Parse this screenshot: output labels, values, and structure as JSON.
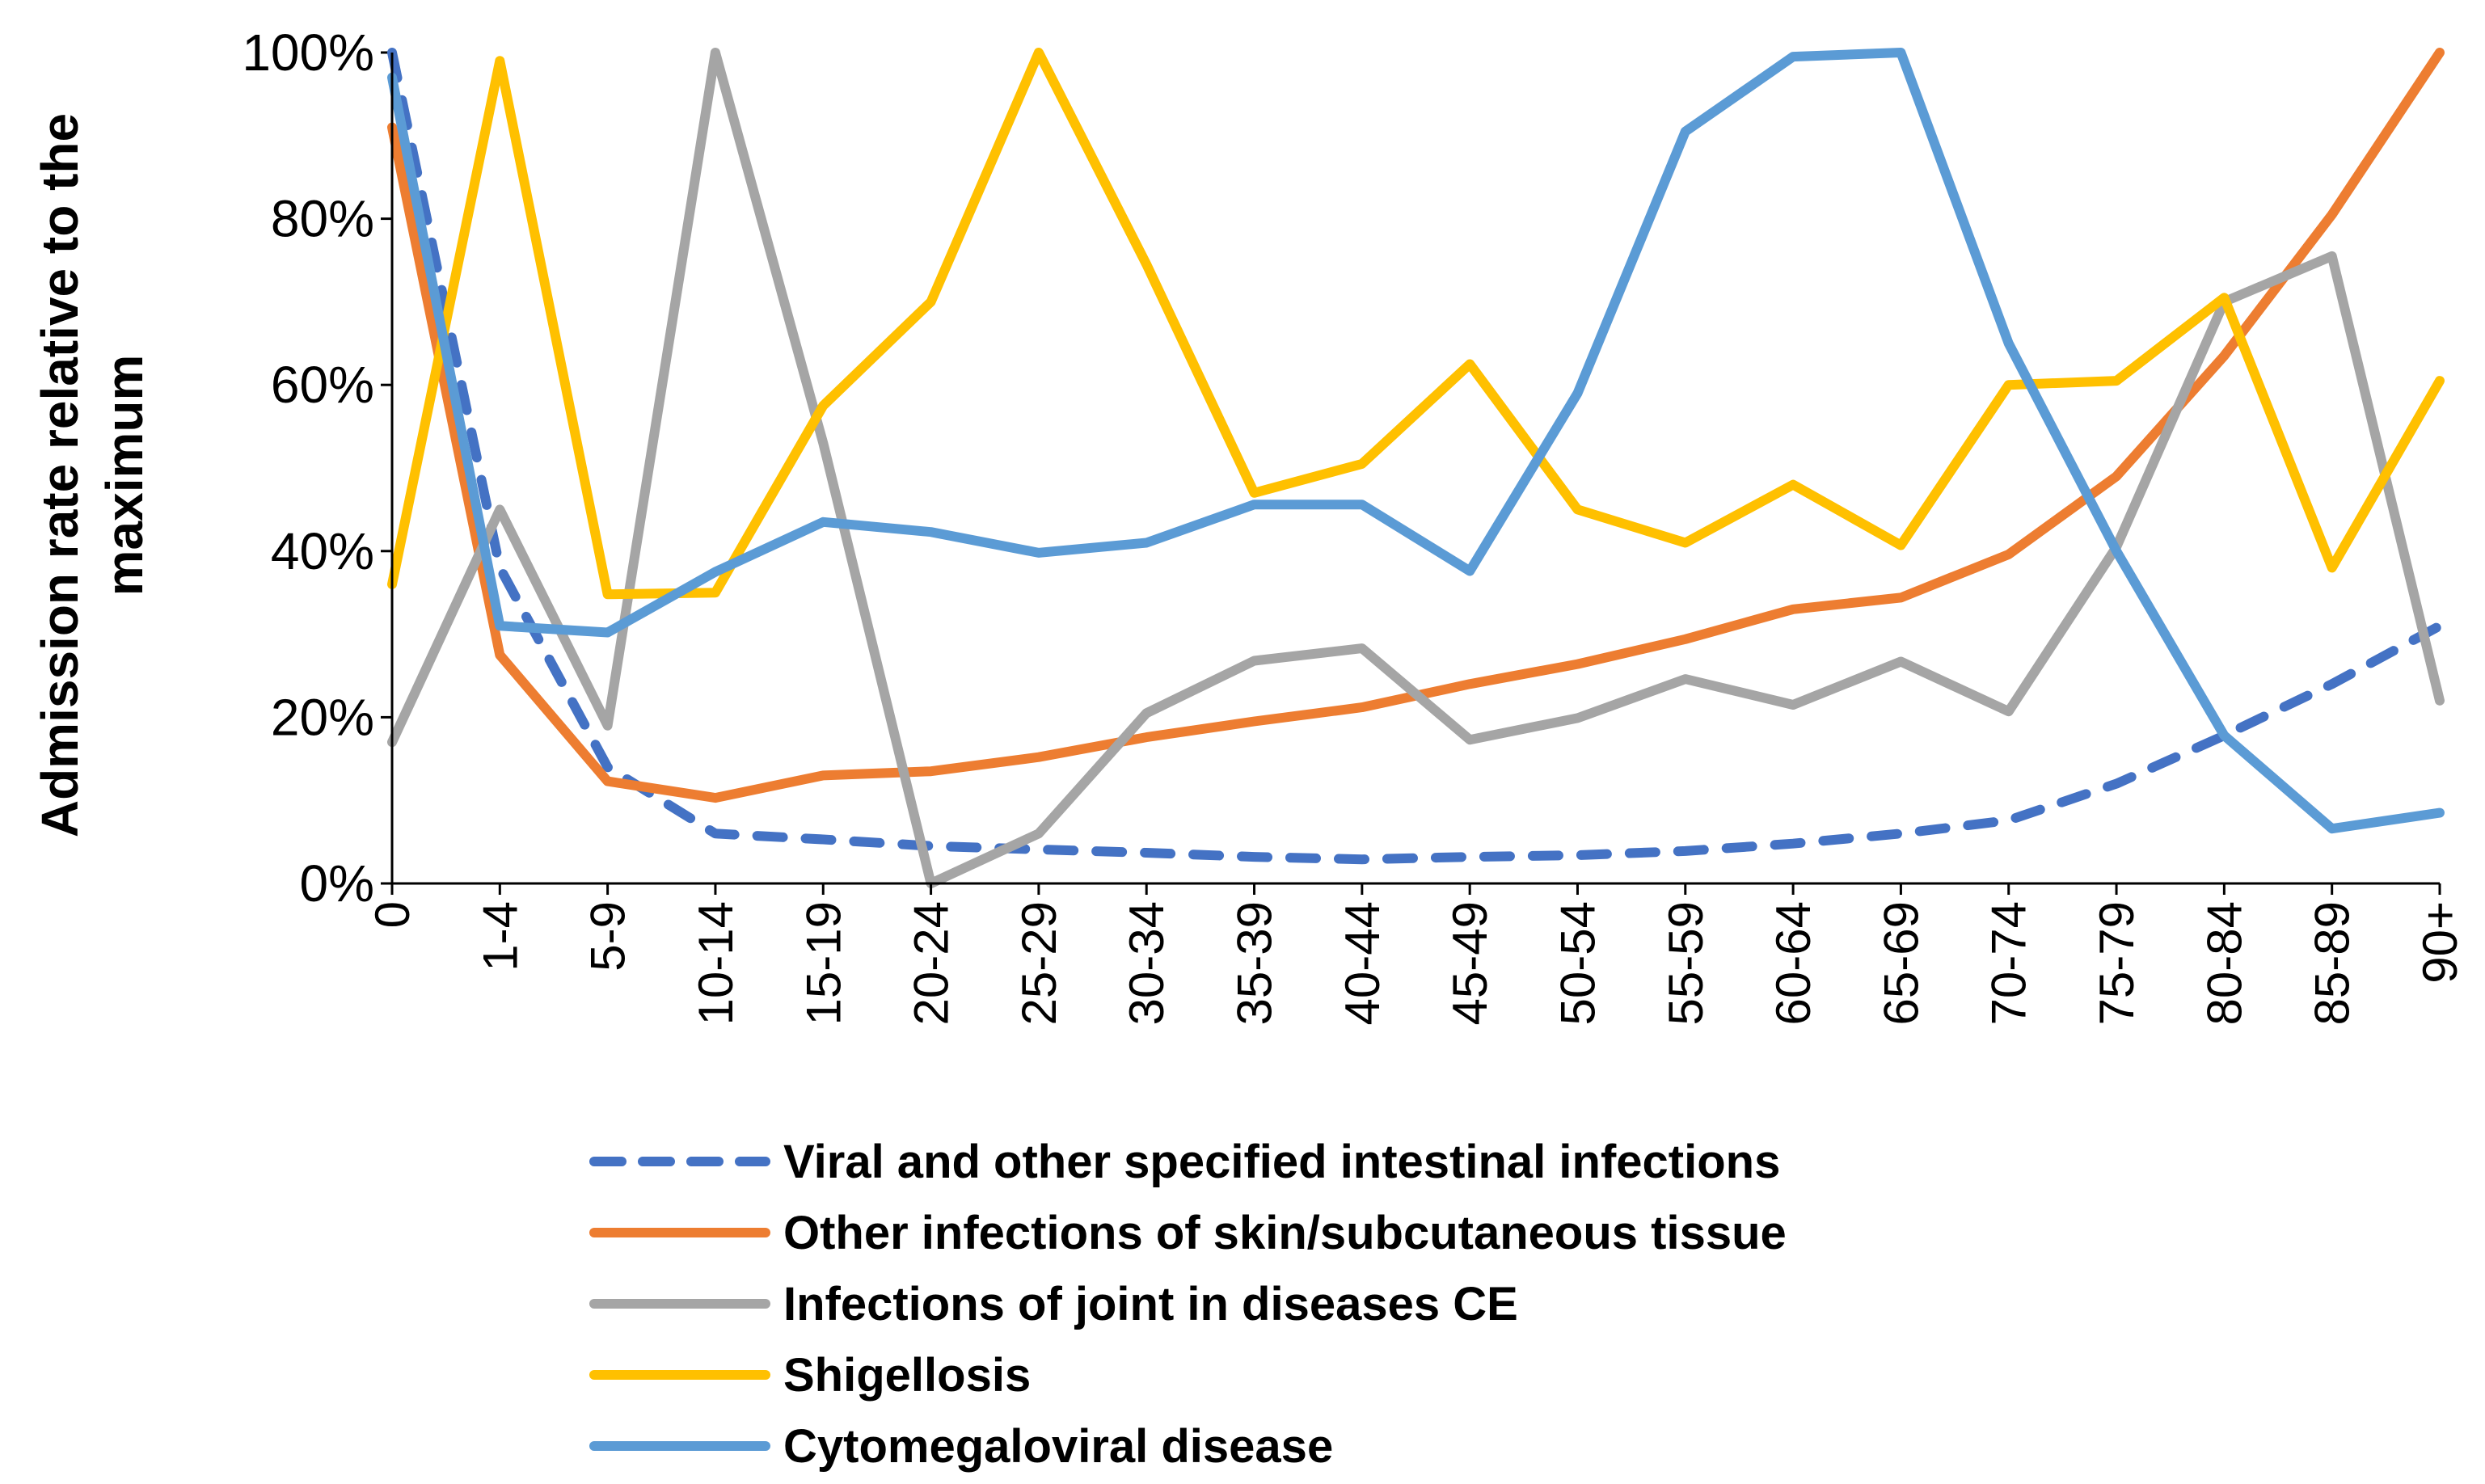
{
  "chart_data": {
    "type": "line",
    "title": "",
    "xlabel": "",
    "ylabel_lines": [
      "Admission rate relative to the",
      "maximum"
    ],
    "ylim": [
      0,
      100
    ],
    "yticks": [
      0,
      20,
      40,
      60,
      80,
      100
    ],
    "ytick_labels": [
      "0%",
      "20%",
      "40%",
      "60%",
      "80%",
      "100%"
    ],
    "grid": false,
    "legend_position": "bottom",
    "categories": [
      "0",
      "1-4",
      "5-9",
      "10-14",
      "15-19",
      "20-24",
      "25-29",
      "30-34",
      "35-39",
      "40-44",
      "45-49",
      "50-54",
      "55-59",
      "60-64",
      "65-69",
      "70-74",
      "75-79",
      "80-84",
      "85-89",
      "90+"
    ],
    "series": [
      {
        "name": "Viral and other specified intestinal infections",
        "color": "#4472C4",
        "dashed": true,
        "values": [
          100,
          38,
          14,
          6,
          5.3,
          4.5,
          4.1,
          3.7,
          3.2,
          2.9,
          3.2,
          3.4,
          3.9,
          4.8,
          6,
          7.6,
          12,
          17.8,
          24,
          31
        ]
      },
      {
        "name": "Other infections of skin/subcutaneous tissue",
        "color": "#ED7D31",
        "dashed": false,
        "values": [
          91,
          27.5,
          12.3,
          10.3,
          13,
          13.5,
          15.2,
          17.6,
          19.5,
          21.2,
          24,
          26.4,
          29.4,
          33,
          34.4,
          39.6,
          49,
          63.5,
          80.5,
          100
        ]
      },
      {
        "name": "Infections of joint in diseases CE",
        "color": "#A5A5A5",
        "dashed": false,
        "values": [
          17,
          45,
          19,
          100,
          53,
          0,
          6,
          20.5,
          26.8,
          28.3,
          17.3,
          19.9,
          24.6,
          21.5,
          26.7,
          20.7,
          40.5,
          70,
          75.5,
          22
        ]
      },
      {
        "name": "Shigellosis",
        "color": "#FFC000",
        "dashed": false,
        "values": [
          36,
          99,
          34.8,
          35,
          57.5,
          70,
          100,
          74.5,
          47,
          50.5,
          62.5,
          45,
          41,
          48,
          40.7,
          60,
          60.5,
          70.5,
          38,
          60.5
        ]
      },
      {
        "name": "Cytomegaloviral disease",
        "color": "#5B9BD5",
        "dashed": false,
        "values": [
          97,
          31,
          30.2,
          37.5,
          43.5,
          42.3,
          39.8,
          41,
          45.6,
          45.6,
          37.6,
          59,
          90.5,
          99.5,
          100,
          65,
          40,
          17.8,
          6.6,
          8.5
        ]
      }
    ]
  }
}
